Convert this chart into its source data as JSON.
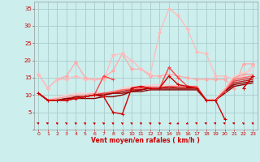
{
  "xlabel": "Vent moyen/en rafales ( km/h )",
  "ylim": [
    0,
    37
  ],
  "xlim": [
    -0.5,
    23.5
  ],
  "yticks": [
    0,
    5,
    10,
    15,
    20,
    25,
    30,
    35
  ],
  "xticks": [
    0,
    1,
    2,
    3,
    4,
    5,
    6,
    7,
    8,
    9,
    10,
    11,
    12,
    13,
    14,
    15,
    16,
    17,
    18,
    19,
    20,
    21,
    22,
    23
  ],
  "bg_color": "#cceeed",
  "grid_color": "#aacccc",
  "xlabel_color": "#cc0000",
  "tick_color": "#cc0000",
  "series": [
    {
      "x": [
        0,
        1,
        2,
        3,
        4,
        5,
        6,
        7,
        8,
        9,
        10,
        11,
        12,
        13,
        14,
        15,
        16,
        17,
        18,
        19,
        20,
        21,
        22,
        23
      ],
      "y": [
        16.0,
        12.0,
        14.5,
        15.5,
        19.5,
        15.0,
        14.5,
        15.0,
        17.0,
        22.0,
        17.5,
        17.5,
        15.5,
        15.5,
        16.0,
        15.5,
        15.0,
        14.5,
        14.5,
        14.5,
        14.5,
        12.0,
        19.0,
        19.0
      ],
      "color": "#ffaaaa",
      "lw": 0.9,
      "marker": "D",
      "ms": 2.0,
      "zorder": 2
    },
    {
      "x": [
        0,
        1,
        2,
        3,
        4,
        5,
        6,
        7,
        8,
        9,
        10,
        11,
        12,
        13,
        14,
        15,
        16,
        17,
        18,
        19,
        20,
        21,
        22,
        23
      ],
      "y": [
        16.0,
        12.0,
        14.5,
        14.5,
        15.5,
        14.5,
        14.5,
        14.5,
        21.5,
        22.0,
        20.0,
        17.5,
        16.0,
        28.0,
        35.0,
        33.0,
        29.0,
        22.5,
        22.0,
        15.5,
        15.5,
        14.5,
        15.5,
        18.5
      ],
      "color": "#ffbbbb",
      "lw": 0.9,
      "marker": "D",
      "ms": 2.0,
      "zorder": 2
    },
    {
      "x": [
        0,
        1,
        2,
        3,
        4,
        5,
        6,
        7,
        8,
        9,
        10,
        11,
        12,
        13,
        14,
        15,
        16,
        17,
        18,
        19,
        20,
        21,
        22,
        23
      ],
      "y": [
        10.5,
        8.5,
        9.5,
        10.0,
        10.5,
        10.5,
        10.5,
        10.5,
        11.0,
        12.0,
        12.5,
        12.5,
        13.0,
        13.0,
        13.0,
        12.5,
        12.5,
        12.5,
        8.5,
        9.0,
        12.0,
        15.5,
        16.5,
        17.0
      ],
      "color": "#ffcccc",
      "lw": 1.0,
      "marker": null,
      "ms": 0,
      "zorder": 3
    },
    {
      "x": [
        0,
        1,
        2,
        3,
        4,
        5,
        6,
        7,
        8,
        9,
        10,
        11,
        12,
        13,
        14,
        15,
        16,
        17,
        18,
        19,
        20,
        21,
        22,
        23
      ],
      "y": [
        10.5,
        8.5,
        9.0,
        9.5,
        10.0,
        10.0,
        10.5,
        10.5,
        10.5,
        11.5,
        12.0,
        12.0,
        12.5,
        12.5,
        12.5,
        12.5,
        12.5,
        12.5,
        8.5,
        8.5,
        11.5,
        15.0,
        16.0,
        16.0
      ],
      "color": "#ff9999",
      "lw": 1.0,
      "marker": null,
      "ms": 0,
      "zorder": 3
    },
    {
      "x": [
        0,
        1,
        2,
        3,
        4,
        5,
        6,
        7,
        8,
        9,
        10,
        11,
        12,
        13,
        14,
        15,
        16,
        17,
        18,
        19,
        20,
        21,
        22,
        23
      ],
      "y": [
        10.5,
        8.5,
        8.5,
        9.0,
        9.5,
        9.5,
        10.0,
        10.5,
        11.0,
        11.5,
        11.5,
        12.0,
        12.0,
        12.0,
        12.5,
        12.5,
        12.5,
        12.5,
        8.5,
        8.5,
        11.0,
        14.5,
        15.0,
        15.5
      ],
      "color": "#ff6666",
      "lw": 1.0,
      "marker": null,
      "ms": 0,
      "zorder": 3
    },
    {
      "x": [
        0,
        1,
        2,
        3,
        4,
        5,
        6,
        7,
        8,
        9,
        10,
        11,
        12,
        13,
        14,
        15,
        16,
        17,
        18,
        19,
        20,
        21,
        22,
        23
      ],
      "y": [
        10.5,
        8.5,
        8.5,
        9.0,
        9.5,
        9.5,
        10.0,
        10.5,
        10.5,
        11.0,
        11.5,
        11.5,
        12.0,
        12.0,
        12.5,
        12.0,
        12.0,
        12.0,
        8.5,
        8.5,
        11.0,
        14.0,
        14.5,
        15.0
      ],
      "color": "#dd4444",
      "lw": 1.0,
      "marker": null,
      "ms": 0,
      "zorder": 3
    },
    {
      "x": [
        0,
        1,
        2,
        3,
        4,
        5,
        6,
        7,
        8,
        9,
        10,
        11,
        12,
        13,
        14,
        15,
        16,
        17,
        18,
        19,
        20,
        21,
        22,
        23
      ],
      "y": [
        10.5,
        8.5,
        8.5,
        8.5,
        9.0,
        9.5,
        10.0,
        10.0,
        10.5,
        11.0,
        11.5,
        11.5,
        12.0,
        12.0,
        12.0,
        12.0,
        12.0,
        12.0,
        8.5,
        8.5,
        11.0,
        13.5,
        14.0,
        14.5
      ],
      "color": "#bb2222",
      "lw": 1.0,
      "marker": null,
      "ms": 0,
      "zorder": 3
    },
    {
      "x": [
        0,
        1,
        2,
        3,
        4,
        5,
        6,
        7,
        8,
        9,
        10,
        11,
        12,
        13,
        14,
        15,
        16,
        17,
        18,
        19,
        20,
        21,
        22,
        23
      ],
      "y": [
        10.5,
        8.5,
        8.5,
        8.5,
        9.5,
        9.5,
        10.0,
        10.0,
        10.5,
        10.5,
        11.0,
        11.5,
        12.0,
        12.0,
        12.0,
        12.0,
        12.0,
        12.0,
        8.5,
        8.5,
        11.0,
        13.0,
        13.5,
        14.0
      ],
      "color": "#990000",
      "lw": 1.0,
      "marker": null,
      "ms": 0,
      "zorder": 3
    },
    {
      "x": [
        0,
        1,
        2,
        3,
        4,
        5,
        6,
        7,
        8,
        9,
        10,
        11,
        12,
        13,
        14,
        15,
        16,
        17,
        18,
        19,
        20,
        21,
        22,
        23
      ],
      "y": [
        10.5,
        8.5,
        8.5,
        9.0,
        9.0,
        9.0,
        9.0,
        9.5,
        9.5,
        10.0,
        11.0,
        11.0,
        11.5,
        11.5,
        11.5,
        11.5,
        11.5,
        11.5,
        8.5,
        8.5,
        10.5,
        12.5,
        13.0,
        13.5
      ],
      "color": "#880000",
      "lw": 1.0,
      "marker": null,
      "ms": 0,
      "zorder": 3
    },
    {
      "x": [
        0,
        1,
        2,
        3,
        4,
        5,
        6,
        7,
        8,
        9,
        10,
        11,
        12,
        13,
        14,
        15,
        16,
        17,
        18,
        19,
        20,
        21,
        22,
        23
      ],
      "y": [
        10.5,
        8.5,
        8.5,
        8.5,
        9.0,
        9.5,
        10.0,
        15.5,
        14.5,
        null,
        12.0,
        12.5,
        12.0,
        12.0,
        18.0,
        15.0,
        12.5,
        12.0,
        8.5,
        8.5,
        11.0,
        null,
        12.0,
        15.5
      ],
      "color": "#ff4444",
      "lw": 1.0,
      "marker": "+",
      "ms": 3.5,
      "zorder": 5
    },
    {
      "x": [
        0,
        1,
        2,
        3,
        4,
        5,
        6,
        7,
        8,
        9,
        10,
        11,
        12,
        13,
        14,
        15,
        16,
        17,
        18,
        19,
        20,
        21,
        22,
        23
      ],
      "y": [
        10.5,
        8.5,
        8.5,
        8.5,
        9.0,
        9.5,
        10.0,
        9.5,
        5.0,
        4.5,
        12.0,
        12.5,
        12.0,
        12.0,
        15.5,
        13.0,
        12.5,
        12.0,
        8.5,
        8.5,
        3.0,
        null,
        12.0,
        15.5
      ],
      "color": "#cc0000",
      "lw": 1.0,
      "marker": "+",
      "ms": 3.5,
      "zorder": 5
    }
  ],
  "wind_arrows": {
    "x": [
      0,
      1,
      2,
      3,
      4,
      5,
      6,
      7,
      8,
      9,
      10,
      11,
      12,
      13,
      14,
      15,
      16,
      17,
      18,
      19,
      20,
      21,
      22,
      23
    ],
    "angles": [
      225,
      225,
      210,
      210,
      210,
      210,
      210,
      210,
      210,
      210,
      210,
      210,
      210,
      210,
      270,
      315,
      315,
      225,
      225,
      225,
      225,
      225,
      210,
      210
    ],
    "color": "#cc0000"
  }
}
